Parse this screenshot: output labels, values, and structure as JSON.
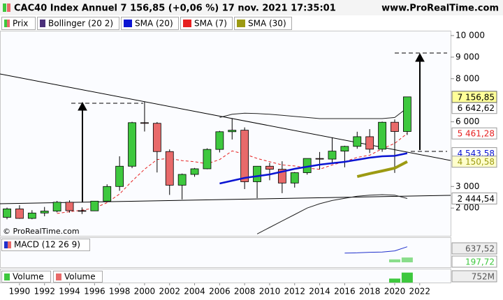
{
  "chart_data": [
    {
      "type": "candlestick",
      "title": "CAC40 Index Annuel 7 156,85 (+0,06 %) 17 nov. 2021 17:35:01",
      "source": "www.ProRealTime.com",
      "copyright": "© ProRealTime.com",
      "x": [
        1989,
        1990,
        1991,
        1992,
        1993,
        1994,
        1995,
        1996,
        1997,
        1998,
        1999,
        2000,
        2001,
        2002,
        2003,
        2004,
        2005,
        2006,
        2007,
        2008,
        2009,
        2010,
        2011,
        2012,
        2013,
        2014,
        2015,
        2016,
        2017,
        2018,
        2019,
        2020,
        2021
      ],
      "xlim": [
        1988.44,
        2024.47
      ],
      "xticks": [
        1990,
        1992,
        1994,
        1996,
        1998,
        2000,
        2002,
        2004,
        2006,
        2008,
        2010,
        2012,
        2014,
        2016,
        2018,
        2020,
        2022
      ],
      "ylim": [
        712,
        10226
      ],
      "yticks": [
        {
          "value": 2000,
          "label": "2 000"
        },
        {
          "value": 3000,
          "label": "3 000"
        },
        {
          "value": 6000,
          "label": "6 000"
        },
        {
          "value": 8000,
          "label": "8 000"
        },
        {
          "value": 9000,
          "label": "9 000"
        },
        {
          "value": 10000,
          "label": "10 000"
        }
      ],
      "series": [
        {
          "name": "Prix",
          "color": "#3ec83e",
          "down_color": "#e86a6a",
          "open": [
            1570,
            1960,
            1520,
            1770,
            1860,
            2270,
            1880,
            1870,
            2320,
            3000,
            3940,
            5960,
            5930,
            4620,
            3060,
            3560,
            3820,
            4720,
            5540,
            5610,
            3220,
            3940,
            3800,
            3160,
            3640,
            4300,
            4270,
            4640,
            4860,
            5310,
            4730,
            5980,
            5550
          ],
          "high": [
            2020,
            2130,
            1900,
            2050,
            2330,
            2360,
            2030,
            2330,
            3100,
            4400,
            6000,
            6940,
            5990,
            4720,
            3600,
            3860,
            4770,
            5580,
            6170,
            5740,
            3950,
            4100,
            4170,
            3670,
            4300,
            4600,
            5280,
            4890,
            5540,
            5660,
            6010,
            6110,
            7160
          ],
          "low": [
            1480,
            1500,
            1480,
            1620,
            1800,
            1790,
            1720,
            1860,
            2300,
            2800,
            3850,
            5550,
            3650,
            2610,
            2400,
            3450,
            3800,
            4580,
            5180,
            2880,
            2460,
            3290,
            2690,
            2950,
            3550,
            3790,
            4080,
            3890,
            4750,
            4550,
            4610,
            3630,
            5390
          ],
          "close": [
            1960,
            1520,
            1770,
            1860,
            2270,
            1880,
            1870,
            2320,
            3000,
            3940,
            5960,
            5930,
            4620,
            3060,
            3560,
            3820,
            4720,
            5540,
            5610,
            3220,
            3940,
            3800,
            3160,
            3640,
            4300,
            4270,
            4640,
            4860,
            5310,
            4730,
            5980,
            5550,
            7156.85
          ],
          "last_label": "7 156,85"
        },
        {
          "name": "Bollinger (20 2)",
          "color": "#222222",
          "swatch": "#4a2f7a",
          "upper": [
            null,
            null,
            null,
            null,
            null,
            null,
            null,
            null,
            null,
            null,
            null,
            null,
            null,
            null,
            null,
            null,
            null,
            6200,
            6350,
            6400,
            6380,
            6350,
            6300,
            6250,
            6200,
            6150,
            6150,
            6150,
            6150,
            6150,
            6150,
            6200,
            6642.62
          ],
          "lower": [
            null,
            null,
            null,
            null,
            null,
            null,
            null,
            null,
            null,
            null,
            null,
            null,
            null,
            null,
            null,
            null,
            null,
            null,
            null,
            null,
            800,
            1100,
            1400,
            1700,
            2000,
            2200,
            2350,
            2450,
            2550,
            2600,
            2620,
            2600,
            2444.54
          ],
          "upper_label": "6 642,62",
          "lower_label": "2 444,54"
        },
        {
          "name": "SMA (20)",
          "color": "#0a14d2",
          "values": [
            null,
            null,
            null,
            null,
            null,
            null,
            null,
            null,
            null,
            null,
            null,
            null,
            null,
            null,
            null,
            null,
            null,
            3139,
            3270,
            3398,
            3480,
            3560,
            3690,
            3819,
            3916,
            4013,
            4080,
            4142,
            4240,
            4337,
            4401,
            4420,
            4543.58
          ],
          "last_label": "4 543,58"
        },
        {
          "name": "SMA (7)",
          "color": "#e62020",
          "values": [
            null,
            null,
            null,
            null,
            1750,
            1830,
            1900,
            2000,
            2250,
            2650,
            3250,
            3800,
            4250,
            4300,
            4200,
            4150,
            4050,
            4250,
            4650,
            4500,
            4300,
            4150,
            4000,
            3950,
            3850,
            3800,
            4000,
            4150,
            4350,
            4450,
            4750,
            5000,
            5461.28
          ],
          "last_label": "5 461,28"
        },
        {
          "name": "SMA (30)",
          "color": "#9c9a12",
          "values": [
            null,
            null,
            null,
            null,
            null,
            null,
            null,
            null,
            null,
            null,
            null,
            null,
            null,
            null,
            null,
            null,
            null,
            null,
            null,
            null,
            null,
            null,
            null,
            null,
            null,
            null,
            null,
            null,
            3460,
            3600,
            3720,
            3850,
            4150.58
          ],
          "last_label": "4 150,58"
        }
      ]
    },
    {
      "type": "line",
      "title": "MACD (12 26 9)",
      "x": [
        2016,
        2017,
        2018,
        2019,
        2020,
        2021
      ],
      "ylim": [
        -200,
        1000
      ],
      "series": [
        {
          "type": "line",
          "color": "#2030cc",
          "values": [
            380,
            390,
            410,
            420,
            470,
            637.52
          ],
          "last_label": "637,52"
        },
        {
          "type": "bar",
          "color": "#3ec83e",
          "values": [
            null,
            null,
            null,
            null,
            120,
            197.72
          ],
          "last_label": "197,72"
        }
      ]
    },
    {
      "type": "bar",
      "legend": [
        "Volume",
        "Volume"
      ],
      "legend_colors": [
        "#3ec83e",
        "#e86a6a"
      ],
      "x": [
        2020,
        2021
      ],
      "values": [
        300,
        752
      ],
      "color": "#3ec83e",
      "ylim": [
        0,
        1000
      ],
      "last_label": "752M"
    }
  ]
}
